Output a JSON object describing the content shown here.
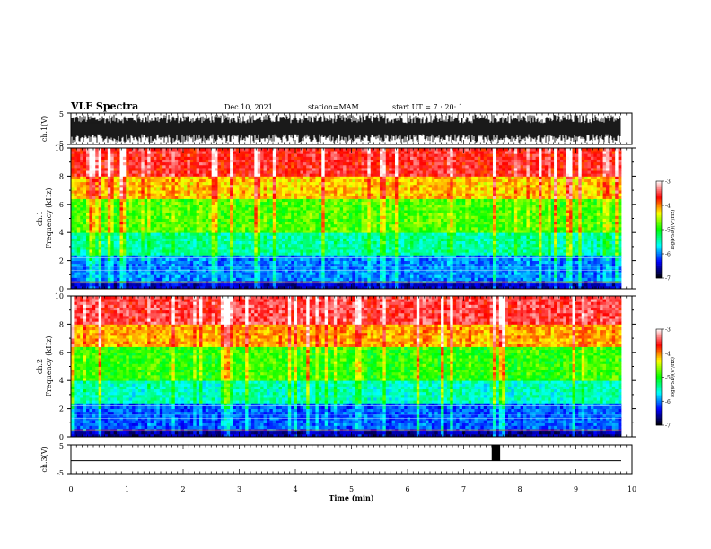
{
  "header": {
    "title": "VLF Spectra",
    "date": "Dec.10, 2021",
    "station": "station=MAM",
    "start": "start UT =  7 : 20: 1"
  },
  "chart_data": [
    {
      "type": "line",
      "panel": "ch1_waveform",
      "ylabel": "ch.1(V)",
      "ylim": [
        -5,
        5
      ],
      "yticks": [
        "5",
        "-5"
      ],
      "xlim": [
        0,
        10
      ],
      "series_color": "#000000"
    },
    {
      "type": "heatmap",
      "panel": "ch1_spectrogram",
      "ylabel_line1": "ch.1",
      "ylabel_line2": "Frequency (kHz)",
      "ylim": [
        0,
        10
      ],
      "yticks": [
        "0",
        "2",
        "4",
        "6",
        "8",
        "10"
      ],
      "xlim": [
        0,
        9.8
      ],
      "colorbar": {
        "label": "log(PSD)(V²/Hz)",
        "range": [
          -7,
          -3
        ],
        "ticks": [
          "-3",
          "-4",
          "-5",
          "-6",
          "-7"
        ],
        "colormap": [
          "#000000",
          "#0000ff",
          "#00ffff",
          "#00ff00",
          "#ffff00",
          "#ff0000",
          "#ffffff"
        ]
      },
      "bands": [
        {
          "freq_khz": [
            0.0,
            0.5
          ],
          "level": -6.5
        },
        {
          "freq_khz": [
            0.5,
            2.5
          ],
          "level": -6.0
        },
        {
          "freq_khz": [
            2.5,
            4.0
          ],
          "level": -5.4
        },
        {
          "freq_khz": [
            4.0,
            6.5
          ],
          "level": -4.8
        },
        {
          "freq_khz": [
            6.5,
            8.0
          ],
          "level": -4.2
        },
        {
          "freq_khz": [
            8.0,
            10.0
          ],
          "level": -3.6
        }
      ]
    },
    {
      "type": "heatmap",
      "panel": "ch2_spectrogram",
      "ylabel_line1": "ch.2",
      "ylabel_line2": "Frequency (kHz)",
      "ylim": [
        0,
        10
      ],
      "yticks": [
        "0",
        "2",
        "4",
        "6",
        "8",
        "10"
      ],
      "xlim": [
        0,
        9.8
      ],
      "colorbar": {
        "label": "log(PSD)(V²/Hz)",
        "range": [
          -7,
          -3
        ],
        "ticks": [
          "-3",
          "-4",
          "-5",
          "-6",
          "-7"
        ],
        "colormap": [
          "#000000",
          "#0000ff",
          "#00ffff",
          "#00ff00",
          "#ffff00",
          "#ff0000",
          "#ffffff"
        ]
      },
      "bands": [
        {
          "freq_khz": [
            0.0,
            0.5
          ],
          "level": -6.6
        },
        {
          "freq_khz": [
            0.5,
            2.5
          ],
          "level": -6.1
        },
        {
          "freq_khz": [
            2.5,
            4.0
          ],
          "level": -5.5
        },
        {
          "freq_khz": [
            4.0,
            6.5
          ],
          "level": -4.9
        },
        {
          "freq_khz": [
            6.5,
            8.0
          ],
          "level": -4.1
        },
        {
          "freq_khz": [
            8.0,
            10.0
          ],
          "level": -3.5
        }
      ]
    },
    {
      "type": "line",
      "panel": "ch3_waveform",
      "ylabel": "ch.3(V)",
      "ylim": [
        -5,
        5
      ],
      "yticks": [
        "5",
        "-5"
      ],
      "xlim": [
        0,
        10
      ],
      "baseline_v": -0.5,
      "pulse": {
        "x": [
          7.5,
          7.65
        ],
        "y": [
          -0.5,
          5
        ]
      },
      "xlabel": "Time (min)",
      "xticks": [
        "0",
        "1",
        "2",
        "3",
        "4",
        "5",
        "6",
        "7",
        "8",
        "9",
        "10"
      ]
    }
  ]
}
